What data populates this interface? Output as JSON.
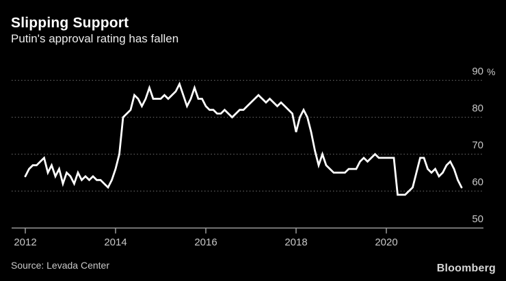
{
  "header": {
    "title": "Slipping Support",
    "subtitle": "Putin's approval rating has fallen"
  },
  "footer": {
    "source": "Source: Levada Center",
    "brand": "Bloomberg"
  },
  "colors": {
    "background": "#000000",
    "line": "#ffffff",
    "grid": "#606060",
    "axis": "#9b9b9b",
    "tick_label": "#c8c8c8",
    "title": "#ffffff",
    "subtitle": "#ededed",
    "source": "#c9c9c9",
    "brand": "#d6d6d6"
  },
  "chart_data": {
    "type": "line",
    "title": "Slipping Support",
    "subtitle": "Putin's approval rating has fallen",
    "xlabel": "",
    "ylabel": "%",
    "y_unit_suffix": "%",
    "ylim": [
      50,
      90
    ],
    "y_ticks": [
      90,
      80,
      70,
      60,
      50
    ],
    "x_ticks": [
      "2012",
      "2014",
      "2016",
      "2018",
      "2020"
    ],
    "x_start_year": 2012,
    "grid": "dotted-horizontal",
    "legend_position": "none",
    "axis_labels_side": "right",
    "series": [
      {
        "name": "Putin approval rating",
        "unit": "%",
        "frequency": "monthly",
        "start": "2012-01",
        "end": "2021-09",
        "values": [
          64,
          66,
          67,
          67,
          68,
          69,
          65,
          67,
          64,
          66,
          62,
          65,
          64,
          62,
          65,
          63,
          64,
          63,
          64,
          63,
          63,
          62,
          61,
          63,
          66,
          70,
          80,
          81,
          82,
          86,
          85,
          83,
          85,
          88,
          85,
          85,
          85,
          86,
          85,
          86,
          87,
          89,
          86,
          83,
          85,
          88,
          85,
          85,
          83,
          82,
          82,
          81,
          81,
          82,
          81,
          80,
          81,
          82,
          82,
          83,
          84,
          85,
          86,
          85,
          84,
          85,
          84,
          83,
          84,
          83,
          82,
          81,
          76,
          80,
          82,
          80,
          76,
          71,
          67,
          70,
          67,
          66,
          65,
          65,
          65,
          65,
          66,
          66,
          66,
          68,
          69,
          68,
          69,
          70,
          69,
          69,
          69,
          69,
          69,
          59,
          59,
          59,
          60,
          61,
          65,
          69,
          69,
          66,
          65,
          66,
          64,
          65,
          67,
          68,
          66,
          63,
          61
        ]
      }
    ]
  }
}
